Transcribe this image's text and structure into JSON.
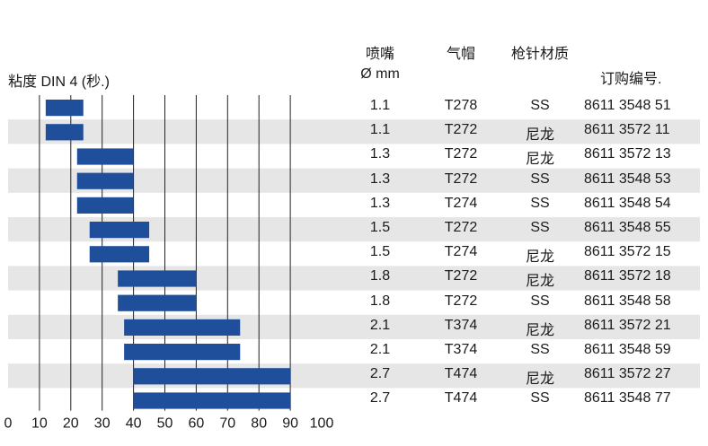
{
  "headers": {
    "viscosity": "粘度 DIN 4 (秒.)",
    "nozzle_line1": "喷嘴",
    "nozzle_line2": "Ø mm",
    "air_cap": "气帽",
    "needle": "枪针材质",
    "order_no": "订购编号."
  },
  "rows": [
    {
      "nozzle": "1.1",
      "air_cap": "T278",
      "needle": "SS",
      "order": "8611 3548 51"
    },
    {
      "nozzle": "1.1",
      "air_cap": "T272",
      "needle": "尼龙",
      "order": "8611 3572 11"
    },
    {
      "nozzle": "1.3",
      "air_cap": "T272",
      "needle": "尼龙",
      "order": "8611 3572 13"
    },
    {
      "nozzle": "1.3",
      "air_cap": "T272",
      "needle": "SS",
      "order": "8611 3548 53"
    },
    {
      "nozzle": "1.3",
      "air_cap": "T274",
      "needle": "SS",
      "order": "8611 3548 54"
    },
    {
      "nozzle": "1.5",
      "air_cap": "T272",
      "needle": "SS",
      "order": "8611 3548 55"
    },
    {
      "nozzle": "1.5",
      "air_cap": "T274",
      "needle": "尼龙",
      "order": "8611 3572 15"
    },
    {
      "nozzle": "1.8",
      "air_cap": "T272",
      "needle": "尼龙",
      "order": "8611 3572 18"
    },
    {
      "nozzle": "1.8",
      "air_cap": "T272",
      "needle": "SS",
      "order": "8611 3548 58"
    },
    {
      "nozzle": "2.1",
      "air_cap": "T374",
      "needle": "尼龙",
      "order": "8611 3572 21"
    },
    {
      "nozzle": "2.1",
      "air_cap": "T374",
      "needle": "SS",
      "order": "8611 3548 59"
    },
    {
      "nozzle": "2.7",
      "air_cap": "T474",
      "needle": "尼龙",
      "order": "8611 3572 27"
    },
    {
      "nozzle": "2.7",
      "air_cap": "T474",
      "needle": "SS",
      "order": "8611 3548 77"
    }
  ],
  "chart_data": {
    "type": "bar",
    "orientation": "horizontal-range",
    "xlabel": "粘度 DIN 4 (秒.)",
    "xlim": [
      0,
      100
    ],
    "xticks": [
      "0",
      "10",
      "20",
      "30",
      "40",
      "50",
      "60",
      "70",
      "80",
      "90",
      "100"
    ],
    "grid": true,
    "bar_color": "#1f4e9a",
    "stripe_color": "#e6e6e6",
    "ranges": [
      [
        12,
        24
      ],
      [
        12,
        24
      ],
      [
        22,
        40
      ],
      [
        22,
        40
      ],
      [
        22,
        40
      ],
      [
        26,
        45
      ],
      [
        26,
        45
      ],
      [
        35,
        60
      ],
      [
        35,
        60
      ],
      [
        37,
        74
      ],
      [
        37,
        74
      ],
      [
        40,
        90
      ],
      [
        40,
        90
      ]
    ]
  }
}
